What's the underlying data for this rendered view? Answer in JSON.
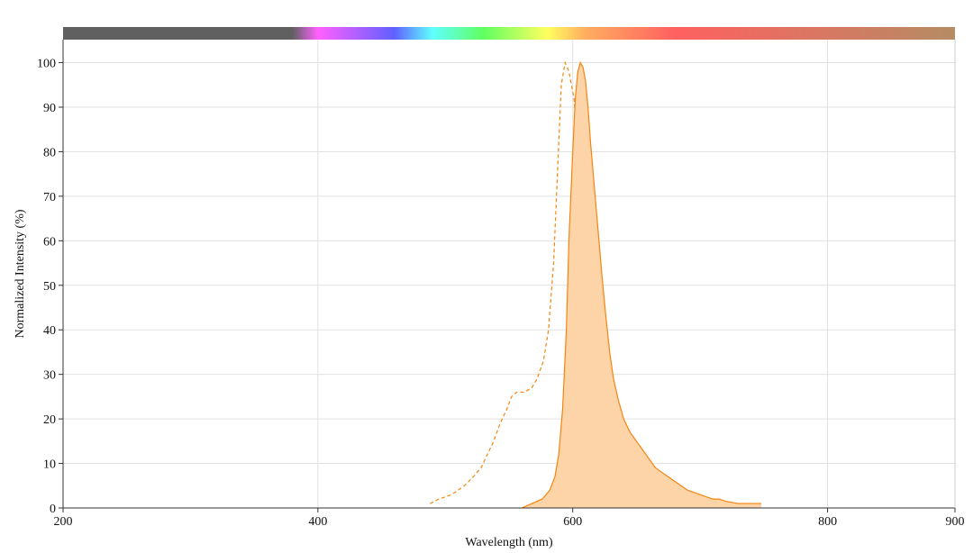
{
  "chart_data": {
    "type": "area",
    "title": "",
    "xlabel": "Wavelength (nm)",
    "ylabel": "Normalized Intensity (%)",
    "xlim": [
      200,
      900
    ],
    "ylim": [
      0,
      108
    ],
    "x_ticks": [
      200,
      400,
      600,
      800,
      900
    ],
    "y_ticks": [
      0,
      10,
      20,
      30,
      40,
      50,
      60,
      70,
      80,
      90,
      100
    ],
    "grid": true,
    "legend": "none",
    "colors": {
      "series": "#f5850f",
      "fill": "#fdd3a8"
    },
    "spectrum_bar": {
      "stops": [
        {
          "nm": 200,
          "color": "#606060"
        },
        {
          "nm": 380,
          "color": "#606060"
        },
        {
          "nm": 400,
          "color": "#ff60ff"
        },
        {
          "nm": 430,
          "color": "#b060ff"
        },
        {
          "nm": 460,
          "color": "#6060ff"
        },
        {
          "nm": 490,
          "color": "#60ffff"
        },
        {
          "nm": 530,
          "color": "#60ff60"
        },
        {
          "nm": 580,
          "color": "#ffff60"
        },
        {
          "nm": 610,
          "color": "#ffad60"
        },
        {
          "nm": 680,
          "color": "#ff6060"
        },
        {
          "nm": 900,
          "color": "#b58c64"
        }
      ]
    },
    "series": [
      {
        "role": "excitation",
        "style": "dashed",
        "filled": false,
        "x": [
          488,
          495,
          505,
          515,
          522,
          528,
          533,
          538,
          543,
          548,
          552,
          556,
          562,
          568,
          572,
          577,
          581,
          585,
          588,
          591,
          594,
          597,
          601,
          605,
          608,
          611,
          614,
          617,
          620,
          623,
          626,
          630,
          634,
          638
        ],
        "y": [
          1,
          2,
          3,
          5,
          7,
          9,
          12,
          15,
          19,
          22,
          25,
          26,
          26,
          27,
          29,
          33,
          40,
          55,
          75,
          95,
          100,
          98,
          92,
          75,
          55,
          38,
          24,
          15,
          9,
          6,
          4,
          2,
          1,
          0
        ]
      },
      {
        "role": "emission",
        "style": "solid",
        "filled": true,
        "x": [
          560,
          568,
          576,
          582,
          586,
          589,
          592,
          595,
          597,
          600,
          602,
          604,
          606,
          608,
          610,
          612,
          614,
          617,
          620,
          623,
          626,
          629,
          632,
          636,
          640,
          645,
          650,
          655,
          660,
          665,
          670,
          675,
          680,
          685,
          690,
          695,
          700,
          705,
          710,
          715,
          720,
          730,
          740,
          748
        ],
        "y": [
          0,
          1,
          2,
          4,
          7,
          12,
          22,
          40,
          60,
          80,
          92,
          98,
          100,
          99,
          96,
          90,
          82,
          72,
          62,
          52,
          43,
          35,
          29,
          24,
          20,
          17,
          15,
          13,
          11,
          9,
          8,
          7,
          6,
          5,
          4,
          3.5,
          3,
          2.5,
          2,
          2,
          1.5,
          1,
          1,
          1
        ]
      }
    ]
  }
}
